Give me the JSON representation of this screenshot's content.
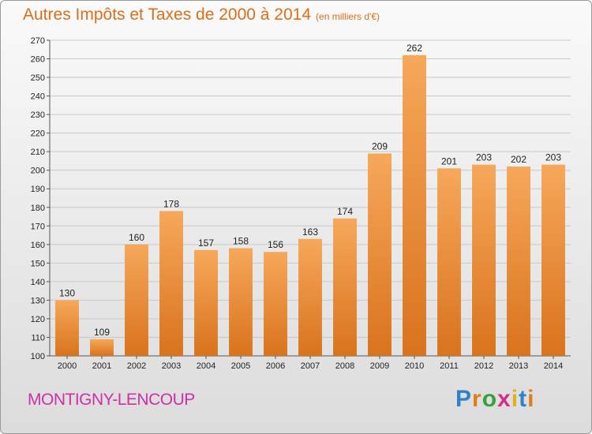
{
  "title": "Autres Impôts et Taxes de 2000 à 2014",
  "title_unit": "(en milliers d'€)",
  "city": "MONTIGNY-LENCOUP",
  "logo": {
    "text": "Proxiti",
    "letters": [
      {
        "ch": "P",
        "color": "#2c83c9"
      },
      {
        "ch": "r",
        "color": "#e07c1a"
      },
      {
        "ch": "o",
        "color": "#3a9e3a"
      },
      {
        "ch": "x",
        "color": "#d42c8b"
      },
      {
        "ch": "i",
        "color": "#e0b21a"
      },
      {
        "ch": "t",
        "color": "#2c83c9"
      },
      {
        "ch": "i",
        "color": "#e07c1a"
      }
    ]
  },
  "colors": {
    "bar_light": "#f6a85a",
    "bar_dark": "#d9731d",
    "title": "#d96f1a",
    "city": "#cf2fa7",
    "grid": "#c8c8c8"
  },
  "chart_data": {
    "type": "bar",
    "categories": [
      "2000",
      "2001",
      "2002",
      "2003",
      "2004",
      "2005",
      "2006",
      "2007",
      "2008",
      "2009",
      "2010",
      "2011",
      "2012",
      "2013",
      "2014"
    ],
    "values": [
      130,
      109,
      160,
      178,
      157,
      158,
      156,
      163,
      174,
      209,
      262,
      201,
      203,
      202,
      203
    ],
    "ylim": [
      100,
      270
    ],
    "yticks": [
      100,
      110,
      120,
      130,
      140,
      150,
      160,
      170,
      180,
      190,
      200,
      210,
      220,
      230,
      240,
      250,
      260,
      270
    ],
    "grid": true,
    "data_labels": true
  }
}
